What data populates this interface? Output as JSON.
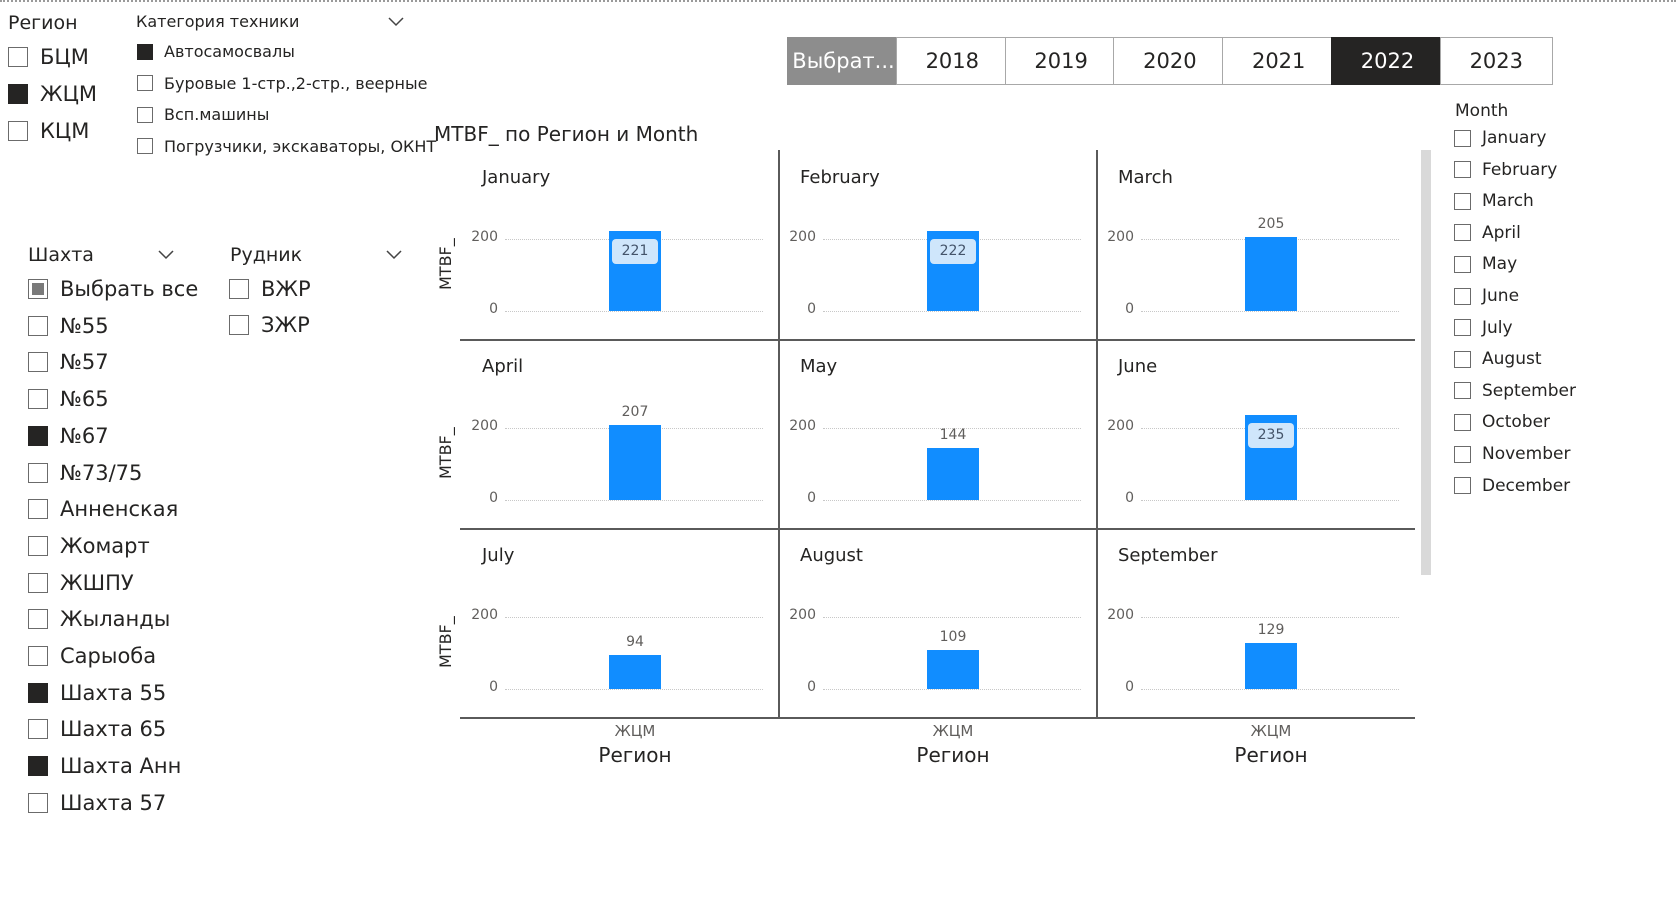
{
  "region_slicer": {
    "title": "Регион",
    "items": [
      {
        "label": "БЦМ",
        "checked": false
      },
      {
        "label": "ЖЦМ",
        "checked": true
      },
      {
        "label": "КЦМ",
        "checked": false
      }
    ]
  },
  "category_slicer": {
    "title": "Категория техники",
    "items": [
      {
        "label": "Автосамосвалы",
        "checked": true
      },
      {
        "label": "Буровые 1-стр.,2-стр., веерные",
        "checked": false
      },
      {
        "label": "Всп.машины",
        "checked": false
      },
      {
        "label": "Погрузчики, экскаваторы, ОКНТ",
        "checked": false
      }
    ]
  },
  "shaft_slicer": {
    "title": "Шахта",
    "items": [
      {
        "label": "Выбрать все",
        "state": "partial"
      },
      {
        "label": "№55",
        "state": "off"
      },
      {
        "label": "№57",
        "state": "off"
      },
      {
        "label": "№65",
        "state": "off"
      },
      {
        "label": "№67",
        "state": "on"
      },
      {
        "label": "№73/75",
        "state": "off"
      },
      {
        "label": "Анненская",
        "state": "off"
      },
      {
        "label": "Жомарт",
        "state": "off"
      },
      {
        "label": "ЖШПУ",
        "state": "off"
      },
      {
        "label": "Жыланды",
        "state": "off"
      },
      {
        "label": "Сарыоба",
        "state": "off"
      },
      {
        "label": "Шахта 55",
        "state": "on"
      },
      {
        "label": "Шахта 65",
        "state": "off"
      },
      {
        "label": "Шахта Анн",
        "state": "on"
      },
      {
        "label": "Шахта 57",
        "state": "off"
      }
    ]
  },
  "mine_slicer": {
    "title": "Рудник",
    "items": [
      {
        "label": "ВЖР",
        "checked": false
      },
      {
        "label": "ЗЖР",
        "checked": false
      }
    ]
  },
  "year_buttons": [
    {
      "label": "Выбрат...",
      "state": "grey"
    },
    {
      "label": "2018",
      "state": "off"
    },
    {
      "label": "2019",
      "state": "off"
    },
    {
      "label": "2020",
      "state": "off"
    },
    {
      "label": "2021",
      "state": "off"
    },
    {
      "label": "2022",
      "state": "selected"
    },
    {
      "label": "2023",
      "state": "off"
    }
  ],
  "month_slicer": {
    "title": "Month",
    "items": [
      "January",
      "February",
      "March",
      "April",
      "May",
      "June",
      "July",
      "August",
      "September",
      "October",
      "November",
      "December"
    ]
  },
  "colors": {
    "bar": "#118dff",
    "selected": "#252423",
    "grey_button": "#8d8d8d"
  },
  "chart_data": {
    "type": "bar",
    "title": "MTBF_ по Регион и Month",
    "ylabel": "MTBF_",
    "xlabel": "Регион",
    "y_ticks": [
      "0",
      "200"
    ],
    "ylim": [
      0,
      245
    ],
    "small_multiples": [
      {
        "month": "January",
        "categories": [
          "ЖЦМ"
        ],
        "values": [
          221
        ],
        "label_inside": true
      },
      {
        "month": "February",
        "categories": [
          "ЖЦМ"
        ],
        "values": [
          222
        ],
        "label_inside": true
      },
      {
        "month": "March",
        "categories": [
          "ЖЦМ"
        ],
        "values": [
          205
        ],
        "label_inside": false
      },
      {
        "month": "April",
        "categories": [
          "ЖЦМ"
        ],
        "values": [
          207
        ],
        "label_inside": false
      },
      {
        "month": "May",
        "categories": [
          "ЖЦМ"
        ],
        "values": [
          144
        ],
        "label_inside": false
      },
      {
        "month": "June",
        "categories": [
          "ЖЦМ"
        ],
        "values": [
          235
        ],
        "label_inside": true
      },
      {
        "month": "July",
        "categories": [
          "ЖЦМ"
        ],
        "values": [
          94
        ],
        "label_inside": false
      },
      {
        "month": "August",
        "categories": [
          "ЖЦМ"
        ],
        "values": [
          109
        ],
        "label_inside": false
      },
      {
        "month": "September",
        "categories": [
          "ЖЦМ"
        ],
        "values": [
          129
        ],
        "label_inside": false
      }
    ]
  }
}
